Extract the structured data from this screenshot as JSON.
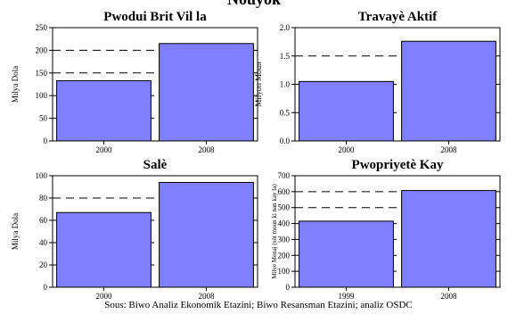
{
  "title": "Nouyòk",
  "source": "Sous: Biwo Analiz Ekonomik Etazini; Biwo Resansman Etazini; analiz OSDC",
  "colors": {
    "bar": "#7f7fff",
    "bar_stroke": "#000000",
    "grid": "#000000"
  },
  "chart_data": [
    {
      "type": "bar",
      "title": "Pwodui Brit Vil la",
      "ylabel": "Milya Dola",
      "categories": [
        "2000",
        "2008"
      ],
      "values": [
        133,
        215
      ],
      "ylim": [
        0,
        250
      ],
      "yticks": [
        "0",
        "50",
        "100",
        "150",
        "200",
        "250"
      ],
      "grid": "dashed horizontal"
    },
    {
      "type": "bar",
      "title": "Travayè Aktif",
      "ylabel": "Milyon Moun",
      "categories": [
        "2000",
        "2008"
      ],
      "values": [
        1.05,
        1.76
      ],
      "ylim": [
        0,
        2.0
      ],
      "yticks": [
        "0.0",
        "0.5",
        "1.0",
        "1.5",
        "2.0"
      ],
      "grid": "dashed horizontal"
    },
    {
      "type": "bar",
      "title": "Salè",
      "ylabel": "Milya Dola",
      "categories": [
        "2000",
        "2008"
      ],
      "values": [
        67,
        94
      ],
      "ylim": [
        0,
        100
      ],
      "yticks": [
        "0",
        "20",
        "40",
        "60",
        "80",
        "100"
      ],
      "grid": "dashed horizontal"
    },
    {
      "type": "bar",
      "title": "Pwopriyetè Kay",
      "ylabel": "Milye Menaj (sòt moun ki nan kay la)",
      "categories": [
        "1999",
        "2008"
      ],
      "values": [
        415,
        607
      ],
      "ylim": [
        0,
        700
      ],
      "yticks": [
        "0",
        "100",
        "200",
        "300",
        "400",
        "500",
        "600",
        "700"
      ],
      "grid": "dashed horizontal"
    }
  ]
}
